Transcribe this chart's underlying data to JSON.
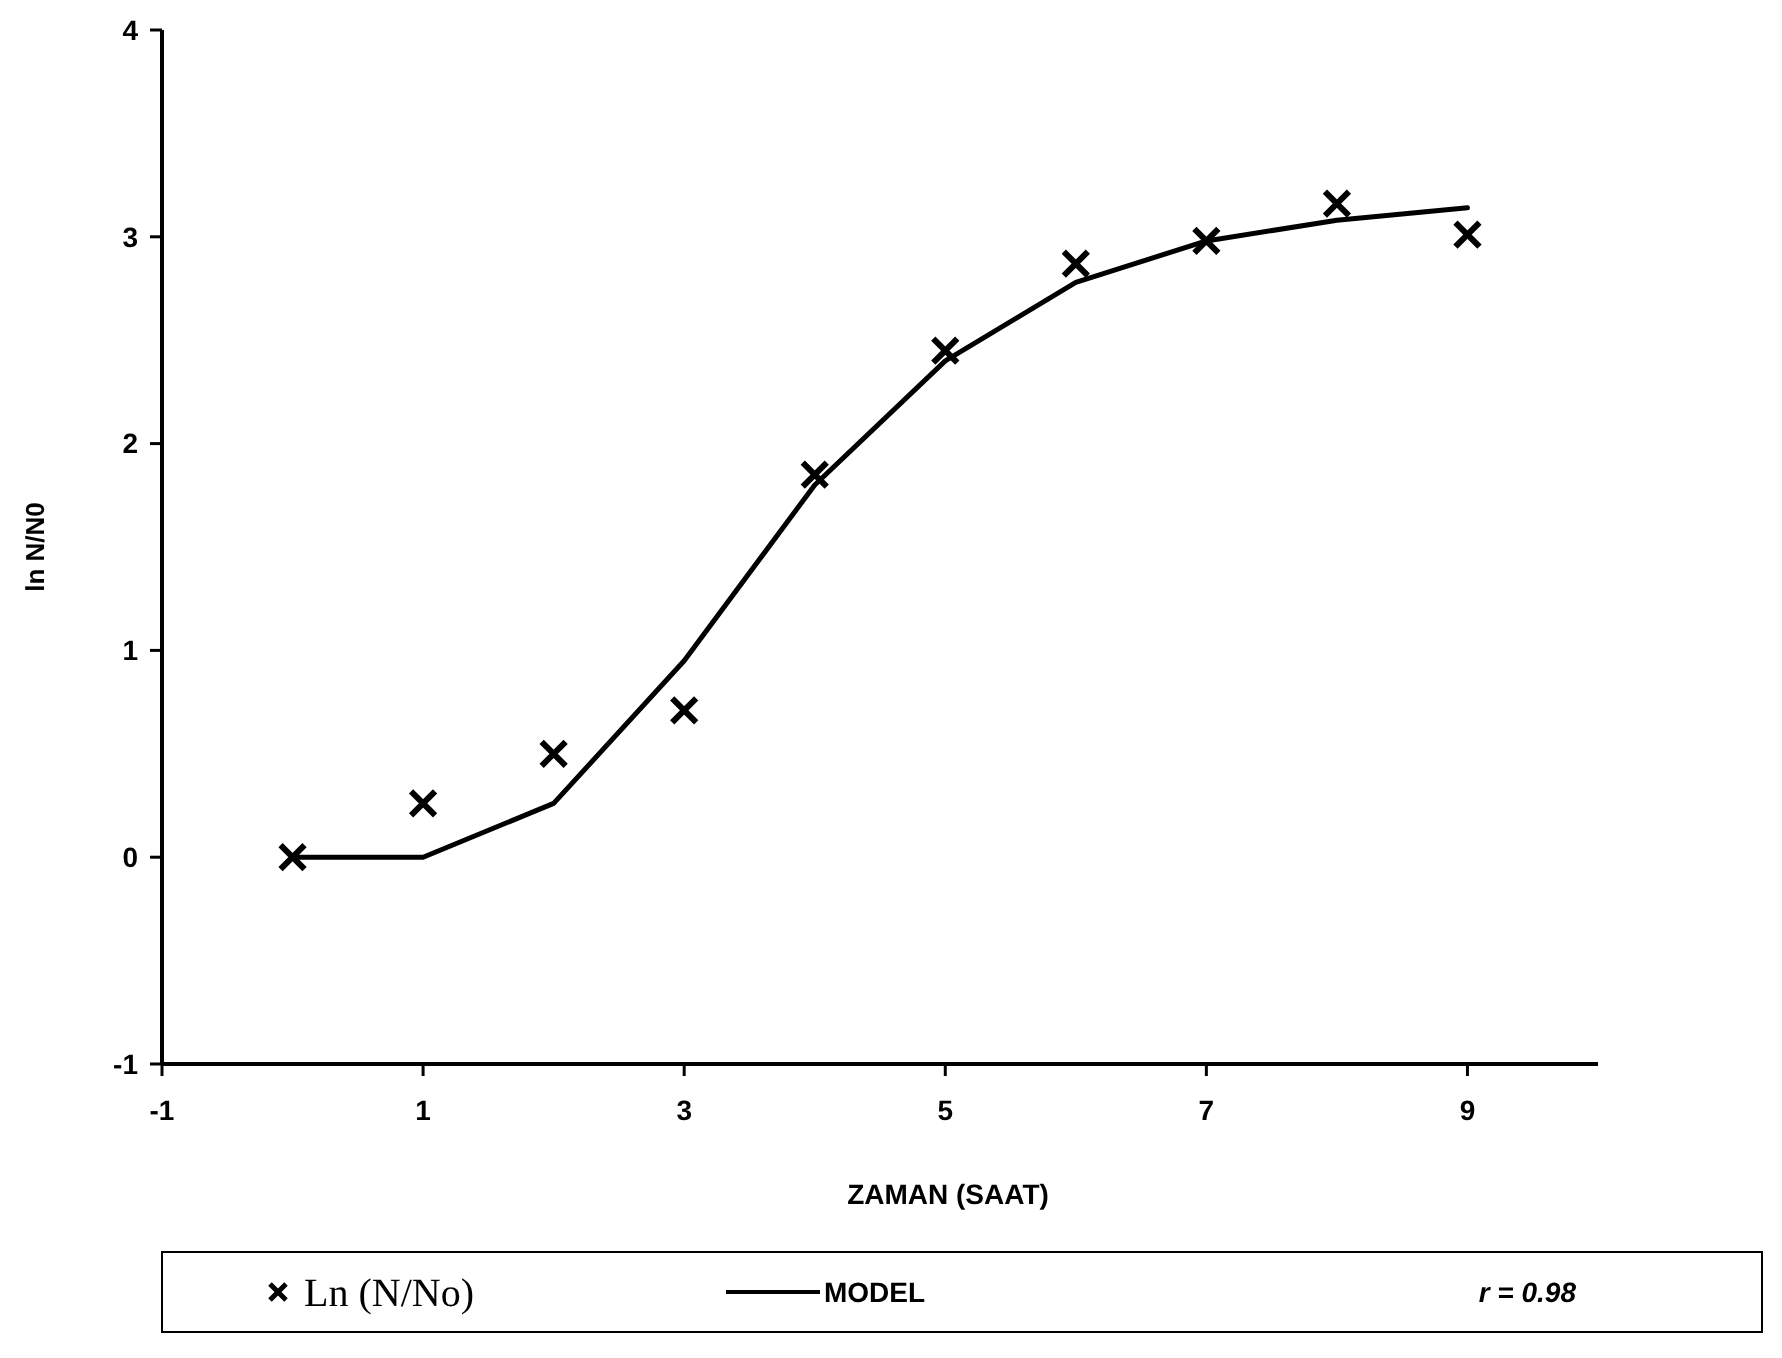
{
  "chart_data": {
    "type": "scatter",
    "xlabel": "ZAMAN (SAAT)",
    "ylabel": "ln N/N0",
    "xlim": [
      -1,
      10
    ],
    "xticks": [
      -1,
      1,
      3,
      5,
      7,
      9
    ],
    "ylim": [
      -1,
      4
    ],
    "yticks": [
      -1,
      0,
      1,
      2,
      3,
      4
    ],
    "grid": false,
    "legend": "bottom",
    "marker": "cross",
    "series": [
      {
        "name": "Ln (N/No)",
        "color": "#000000",
        "x": [
          0,
          1,
          2,
          3,
          4,
          5,
          6,
          7,
          8,
          9
        ],
        "values": [
          0,
          0.26,
          0.5,
          0.71,
          1.85,
          2.45,
          2.87,
          2.98,
          3.16,
          3.01
        ]
      },
      {
        "name": "MODEL",
        "type": "line",
        "color": "#000000",
        "line_style": "solid",
        "marker": "none",
        "x": [
          0,
          1,
          2,
          3,
          4,
          5,
          6,
          7,
          8,
          9
        ],
        "values": [
          0,
          0,
          0.26,
          0.95,
          1.8,
          2.4,
          2.78,
          2.98,
          3.08,
          3.14
        ]
      }
    ],
    "annotations": [
      "r = 0.98"
    ]
  }
}
